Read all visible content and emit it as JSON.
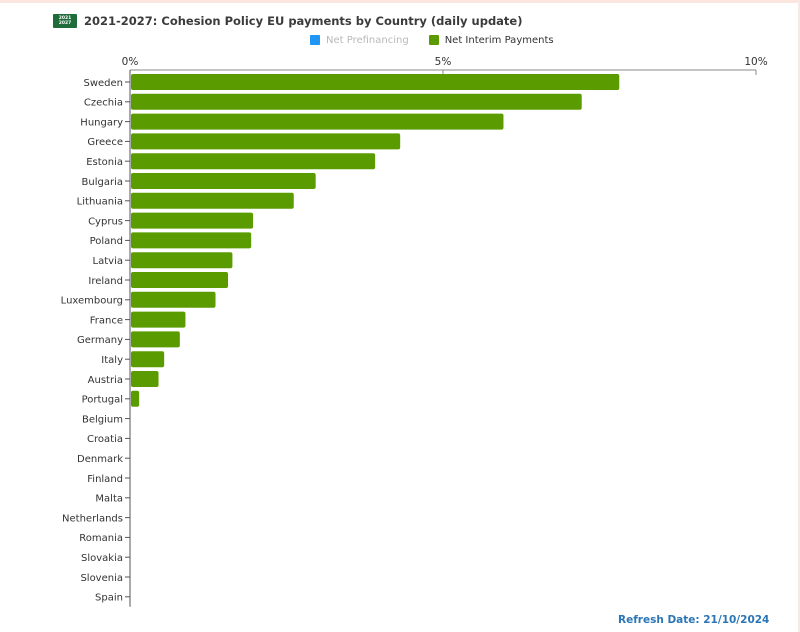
{
  "header": {
    "badge_top": "2021",
    "badge_bottom": "2027",
    "title": "2021-2027: Cohesion Policy EU payments by Country (daily update)"
  },
  "legend": [
    {
      "label": "Net Prefinancing",
      "color": "#2196f3",
      "active": false
    },
    {
      "label": "Net Interim Payments",
      "color": "#5a9c00",
      "active": true
    }
  ],
  "chart_data": {
    "type": "bar",
    "orientation": "horizontal",
    "categories": [
      "Sweden",
      "Czechia",
      "Hungary",
      "Greece",
      "Estonia",
      "Bulgaria",
      "Lithuania",
      "Cyprus",
      "Poland",
      "Latvia",
      "Ireland",
      "Luxembourg",
      "France",
      "Germany",
      "Italy",
      "Austria",
      "Portugal",
      "Belgium",
      "Croatia",
      "Denmark",
      "Finland",
      "Malta",
      "Netherlands",
      "Romania",
      "Slovakia",
      "Slovenia",
      "Spain"
    ],
    "series": [
      {
        "name": "Net Interim Payments",
        "color": "#5a9c00",
        "values": [
          7.8,
          7.2,
          5.95,
          4.3,
          3.9,
          2.95,
          2.6,
          1.95,
          1.92,
          1.62,
          1.55,
          1.35,
          0.87,
          0.78,
          0.53,
          0.44,
          0.13,
          0,
          0,
          0,
          0,
          0,
          0,
          0,
          0,
          0,
          0
        ]
      }
    ],
    "xlim": [
      0,
      10
    ],
    "xticks": [
      "0%",
      "5%",
      "10%"
    ],
    "axis_position": "top",
    "legend_position": "top",
    "grid": false
  },
  "footer": {
    "refresh": "Refresh Date: 21/10/2024"
  }
}
